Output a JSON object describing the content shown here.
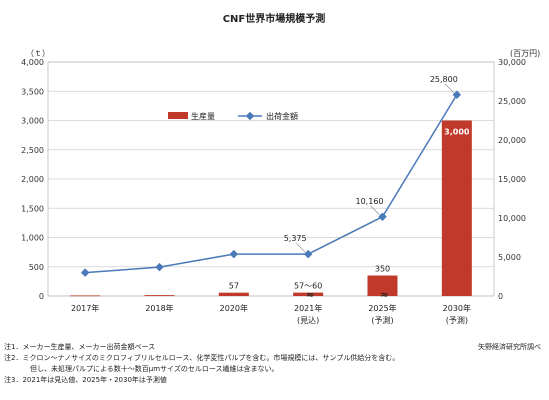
{
  "chart_data": {
    "type": "bar+line",
    "title": "CNF世界市場規模予測",
    "y_left_unit": "（ｔ）",
    "y_right_unit": "(百万円)",
    "y_left_ticks": [
      "0",
      "500",
      "1,000",
      "1,500",
      "2,000",
      "2,500",
      "3,000",
      "3,500",
      "4,000"
    ],
    "y_right_ticks": [
      "0",
      "5,000",
      "10,000",
      "15,000",
      "20,000",
      "25,000",
      "30,000"
    ],
    "ylim_left": [
      0,
      4000
    ],
    "ylim_right": [
      0,
      30000
    ],
    "categories": [
      {
        "year": "2017年",
        "sub": ""
      },
      {
        "year": "2018年",
        "sub": ""
      },
      {
        "year": "2020年",
        "sub": ""
      },
      {
        "year": "2021年",
        "sub": "(見込)"
      },
      {
        "year": "2025年",
        "sub": "(予測)"
      },
      {
        "year": "2030年",
        "sub": "(予測)"
      }
    ],
    "series": [
      {
        "name": "生産量",
        "type": "bar",
        "axis": "left",
        "color": "#c0392b",
        "values": [
          10,
          15,
          57,
          58,
          350,
          3000
        ],
        "labels": [
          "",
          "",
          "57",
          "57～60",
          "350",
          "3,000"
        ]
      },
      {
        "name": "出荷金額",
        "type": "line",
        "axis": "right",
        "color": "#4a7ab9",
        "values": [
          3000,
          3700,
          5375,
          5375,
          10160,
          25800
        ],
        "labels": [
          "",
          "",
          "",
          "5,375",
          "10,160",
          "25,800"
        ]
      }
    ],
    "axis_break_marks": "≈",
    "legend_placement": "top-left",
    "grid": true
  },
  "notes": [
    "注1．メーカー生産量、メーカー出荷金額ベース",
    "注2．ミクロン～ナノサイズのミクロフィブリルセルロース、化学変性パルプを含む。市場規模には、サンプル供給分を含む。",
    "但し、未処理パルプによる数十～数百μmサイズのセルロース繊維は含まない。",
    "注3．2021年は見込値、2025年・2030年は予測値"
  ],
  "credit": "矢野経済研究所調べ"
}
